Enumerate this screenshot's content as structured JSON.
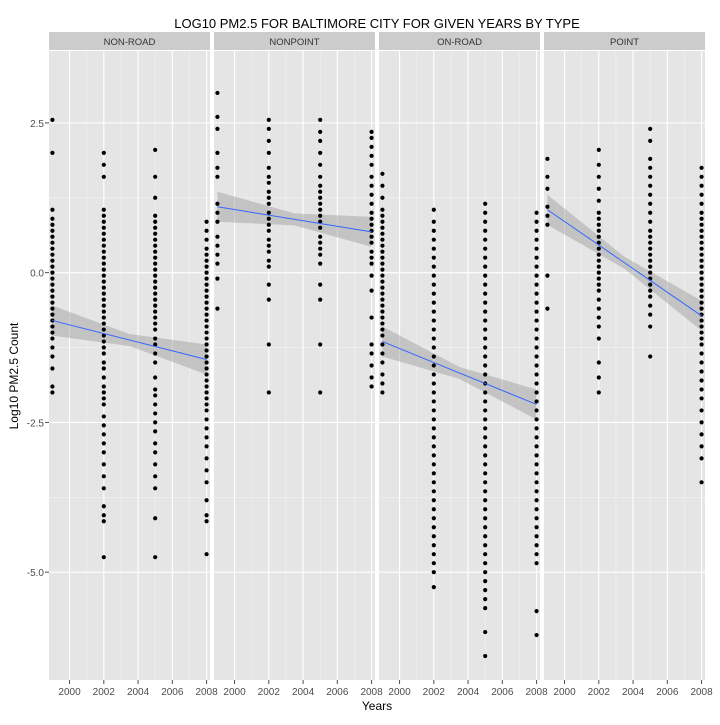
{
  "chart_data": {
    "type": "scatter",
    "title": "LOG10 PM2.5 FOR BALTIMORE CITY FOR GIVEN YEARS BY TYPE",
    "xlabel": "Years",
    "ylabel": "Log10 PM2.5 Count",
    "xlim": [
      1998.8,
      2008.2
    ],
    "ylim": [
      -6.8,
      3.7
    ],
    "x_ticks": [
      2000,
      2002,
      2004,
      2006,
      2008
    ],
    "y_ticks": [
      2.5,
      0.0,
      -2.5,
      -5.0
    ],
    "x_tick_labels": [
      "2000",
      "2002",
      "2004",
      "2006",
      "2008"
    ],
    "y_tick_labels": [
      "2.5",
      "0.0",
      "-2.5",
      "-5.0"
    ],
    "grid": true,
    "facets": [
      {
        "label": "NON-ROAD",
        "points": [
          {
            "year": 1999,
            "values": [
              2.55,
              2.0,
              1.05,
              0.9,
              0.8,
              0.7,
              0.6,
              0.5,
              0.4,
              0.3,
              0.2,
              0.1,
              0.0,
              -0.1,
              -0.2,
              -0.3,
              -0.4,
              -0.5,
              -0.6,
              -0.7,
              -0.8,
              -0.9,
              -1.0,
              -1.1,
              -1.25,
              -1.4,
              -1.6,
              -1.9,
              -2.0
            ]
          },
          {
            "year": 2002,
            "values": [
              2.0,
              1.8,
              1.6,
              1.05,
              0.95,
              0.85,
              0.75,
              0.65,
              0.55,
              0.45,
              0.35,
              0.25,
              0.15,
              0.05,
              -0.05,
              -0.15,
              -0.25,
              -0.35,
              -0.45,
              -0.55,
              -0.65,
              -0.75,
              -0.85,
              -0.95,
              -1.05,
              -1.15,
              -1.25,
              -1.35,
              -1.5,
              -1.6,
              -1.75,
              -1.9,
              -2.0,
              -2.1,
              -2.2,
              -2.4,
              -2.55,
              -2.7,
              -2.85,
              -3.0,
              -3.2,
              -3.4,
              -3.6,
              -3.9,
              -4.05,
              -4.15,
              -4.75
            ]
          },
          {
            "year": 2005,
            "values": [
              2.05,
              1.6,
              1.25,
              0.95,
              0.85,
              0.75,
              0.65,
              0.55,
              0.45,
              0.35,
              0.25,
              0.15,
              0.05,
              -0.05,
              -0.15,
              -0.25,
              -0.35,
              -0.45,
              -0.55,
              -0.65,
              -0.75,
              -0.85,
              -0.95,
              -1.1,
              -1.2,
              -1.35,
              -1.5,
              -1.75,
              -1.95,
              -2.05,
              -2.2,
              -2.35,
              -2.5,
              -2.65,
              -2.85,
              -3.0,
              -3.2,
              -3.4,
              -3.6,
              -4.1,
              -4.75
            ]
          },
          {
            "year": 2008,
            "values": [
              0.85,
              0.7,
              0.55,
              0.4,
              0.3,
              0.2,
              0.1,
              0.0,
              -0.1,
              -0.2,
              -0.3,
              -0.4,
              -0.5,
              -0.6,
              -0.7,
              -0.8,
              -0.9,
              -1.0,
              -1.1,
              -1.2,
              -1.3,
              -1.4,
              -1.5,
              -1.6,
              -1.7,
              -1.8,
              -1.9,
              -2.0,
              -2.1,
              -2.2,
              -2.3,
              -2.45,
              -2.6,
              -2.75,
              -2.9,
              -3.1,
              -3.3,
              -3.5,
              -3.8,
              -4.05,
              -4.15,
              -4.7
            ]
          }
        ],
        "trend": {
          "start": [
            1999,
            -0.8
          ],
          "end": [
            2008,
            -1.45
          ]
        }
      },
      {
        "label": "NONPOINT",
        "points": [
          {
            "year": 1999,
            "values": [
              3.0,
              2.6,
              2.4,
              2.0,
              1.75,
              1.6,
              1.15,
              1.0,
              0.85,
              0.6,
              0.45,
              0.3,
              0.15,
              -0.1,
              -0.6
            ]
          },
          {
            "year": 2002,
            "values": [
              2.55,
              2.4,
              2.2,
              2.0,
              1.75,
              1.6,
              1.5,
              1.35,
              1.25,
              1.15,
              1.0,
              0.9,
              0.8,
              0.7,
              0.55,
              0.45,
              0.35,
              0.2,
              0.1,
              -0.2,
              -0.45,
              -1.2,
              -2.0
            ]
          },
          {
            "year": 2005,
            "values": [
              2.55,
              2.35,
              2.2,
              2.0,
              1.8,
              1.6,
              1.45,
              1.35,
              1.25,
              1.15,
              1.05,
              0.95,
              0.85,
              0.75,
              0.6,
              0.5,
              0.4,
              0.3,
              0.15,
              -0.2,
              -0.45,
              -1.2,
              -2.0
            ]
          },
          {
            "year": 2008,
            "values": [
              2.35,
              2.25,
              2.1,
              1.95,
              1.8,
              1.6,
              1.45,
              1.3,
              1.15,
              1.0,
              0.9,
              0.8,
              0.7,
              0.6,
              0.5,
              0.35,
              0.25,
              0.15,
              -0.05,
              -0.3,
              -0.75,
              -1.2,
              -1.35,
              -1.55,
              -1.75,
              -1.9
            ]
          }
        ],
        "trend": {
          "start": [
            1999,
            1.1
          ],
          "end": [
            2008,
            0.68
          ]
        }
      },
      {
        "label": "ON-ROAD",
        "points": [
          {
            "year": 1999,
            "values": [
              1.65,
              1.45,
              1.25,
              1.05,
              0.95,
              0.85,
              0.75,
              0.65,
              0.55,
              0.45,
              0.35,
              0.25,
              0.15,
              0.05,
              -0.05,
              -0.15,
              -0.25,
              -0.35,
              -0.45,
              -0.55,
              -0.65,
              -0.75,
              -0.85,
              -0.95,
              -1.05,
              -1.2,
              -1.35,
              -1.5,
              -1.7,
              -1.85,
              -2.0
            ]
          },
          {
            "year": 2002,
            "values": [
              1.05,
              0.85,
              0.7,
              0.55,
              0.4,
              0.25,
              0.1,
              -0.05,
              -0.2,
              -0.35,
              -0.5,
              -0.65,
              -0.8,
              -0.95,
              -1.1,
              -1.25,
              -1.4,
              -1.55,
              -1.7,
              -1.85,
              -2.0,
              -2.15,
              -2.3,
              -2.45,
              -2.6,
              -2.75,
              -2.9,
              -3.05,
              -3.2,
              -3.35,
              -3.5,
              -3.65,
              -3.8,
              -3.95,
              -4.1,
              -4.25,
              -4.4,
              -4.55,
              -4.7,
              -4.85,
              -5.0,
              -5.25
            ]
          },
          {
            "year": 2005,
            "values": [
              1.15,
              1.0,
              0.85,
              0.7,
              0.55,
              0.4,
              0.25,
              0.1,
              -0.05,
              -0.2,
              -0.35,
              -0.5,
              -0.65,
              -0.8,
              -0.95,
              -1.1,
              -1.25,
              -1.4,
              -1.55,
              -1.7,
              -1.85,
              -2.0,
              -2.15,
              -2.3,
              -2.45,
              -2.6,
              -2.75,
              -2.9,
              -3.05,
              -3.2,
              -3.35,
              -3.5,
              -3.65,
              -3.8,
              -3.95,
              -4.1,
              -4.25,
              -4.4,
              -4.55,
              -4.7,
              -4.85,
              -5.0,
              -5.15,
              -5.3,
              -5.45,
              -5.6,
              -6.0,
              -6.4
            ]
          },
          {
            "year": 2008,
            "values": [
              1.0,
              0.85,
              0.7,
              0.55,
              0.4,
              0.25,
              0.1,
              -0.05,
              -0.2,
              -0.35,
              -0.5,
              -0.65,
              -0.8,
              -0.95,
              -1.1,
              -1.25,
              -1.4,
              -1.55,
              -1.7,
              -1.85,
              -2.0,
              -2.15,
              -2.3,
              -2.45,
              -2.6,
              -2.75,
              -2.9,
              -3.05,
              -3.2,
              -3.35,
              -3.5,
              -3.65,
              -3.8,
              -3.95,
              -4.1,
              -4.25,
              -4.4,
              -4.55,
              -4.7,
              -4.85,
              -5.65,
              -6.05
            ]
          }
        ],
        "trend": {
          "start": [
            1999,
            -1.15
          ],
          "end": [
            2008,
            -2.2
          ]
        }
      },
      {
        "label": "POINT",
        "points": [
          {
            "year": 1999,
            "values": [
              1.9,
              1.6,
              1.4,
              1.1,
              0.95,
              0.8,
              -0.05,
              -0.6
            ]
          },
          {
            "year": 2002,
            "values": [
              2.05,
              1.8,
              1.6,
              1.4,
              1.2,
              1.0,
              0.9,
              0.8,
              0.7,
              0.6,
              0.5,
              0.4,
              0.3,
              0.2,
              0.1,
              0.0,
              -0.1,
              -0.2,
              -0.3,
              -0.45,
              -0.6,
              -0.75,
              -0.9,
              -1.1,
              -1.5,
              -1.75,
              -2.0
            ]
          },
          {
            "year": 2005,
            "values": [
              2.4,
              2.2,
              1.9,
              1.75,
              1.6,
              1.45,
              1.3,
              1.15,
              1.0,
              0.85,
              0.7,
              0.6,
              0.5,
              0.4,
              0.3,
              0.2,
              0.1,
              0.0,
              -0.1,
              -0.2,
              -0.3,
              -0.4,
              -0.55,
              -0.7,
              -0.9,
              -1.4
            ]
          },
          {
            "year": 2008,
            "values": [
              1.75,
              1.6,
              1.45,
              1.3,
              1.15,
              1.0,
              0.9,
              0.8,
              0.7,
              0.6,
              0.5,
              0.4,
              0.3,
              0.2,
              0.1,
              0.0,
              -0.1,
              -0.2,
              -0.3,
              -0.4,
              -0.5,
              -0.6,
              -0.7,
              -0.8,
              -0.9,
              -1.0,
              -1.1,
              -1.2,
              -1.35,
              -1.5,
              -1.65,
              -1.8,
              -1.95,
              -2.1,
              -2.3,
              -2.5,
              -2.7,
              -2.9,
              -3.1,
              -3.5
            ]
          }
        ],
        "trend": {
          "start": [
            1999,
            1.05
          ],
          "end": [
            2008,
            -0.72
          ]
        }
      }
    ]
  },
  "colors": {
    "panel_bg": "#e5e5e5",
    "strip_bg": "#cccccc",
    "grid_major": "#ffffff",
    "grid_minor": "#f2f2f2",
    "point": "#000000",
    "trend_line": "#3366ff",
    "ribbon": "#999999",
    "text": "#333333",
    "tick_text": "#4d4d4d"
  }
}
